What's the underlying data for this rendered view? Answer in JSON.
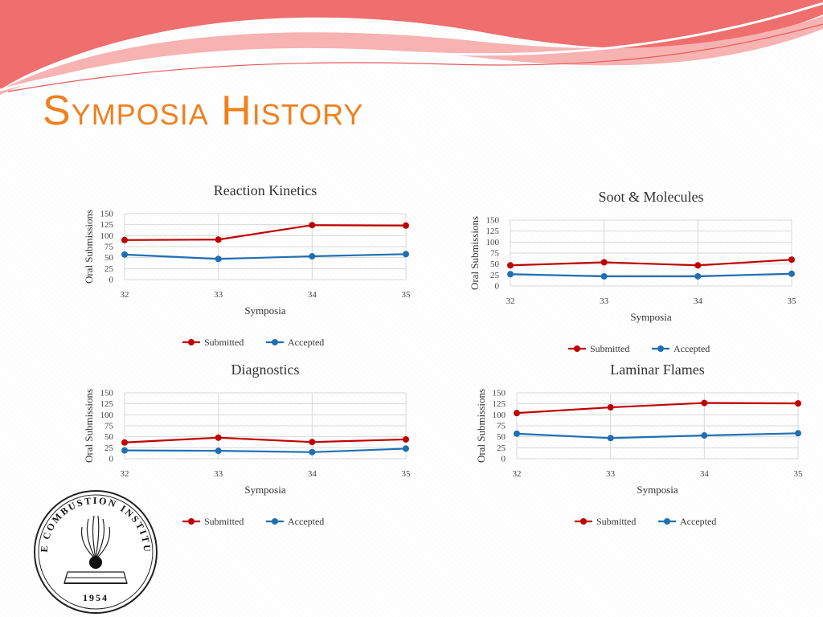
{
  "slide": {
    "title": "Symposia History"
  },
  "seal": {
    "text": "THE COMBUSTION INSTITUTE",
    "year": "1954"
  },
  "colors": {
    "title": "#f0801f",
    "submitted": "#c00000",
    "accepted": "#1f6fb4",
    "wave_top": "#ef6f6f"
  },
  "chart_data": [
    {
      "type": "line",
      "title": "Reaction Kinetics",
      "xlabel": "Symposia",
      "ylabel": "Oral Submissions",
      "categories": [
        "32",
        "33",
        "34",
        "35"
      ],
      "ylim": [
        0,
        150
      ],
      "yticks": [
        0,
        25,
        50,
        75,
        100,
        125,
        150
      ],
      "grid": true,
      "legend": "bottom",
      "series": [
        {
          "name": "Submitted",
          "values": [
            90,
            91,
            124,
            123
          ]
        },
        {
          "name": "Accepted",
          "values": [
            57,
            47,
            53,
            58
          ]
        }
      ]
    },
    {
      "type": "line",
      "title": "Soot & Molecules",
      "xlabel": "Symposia",
      "ylabel": "Oral Submissions",
      "categories": [
        "32",
        "33",
        "34",
        "35"
      ],
      "ylim": [
        0,
        150
      ],
      "yticks": [
        0,
        25,
        50,
        75,
        100,
        125,
        150
      ],
      "grid": true,
      "legend": "bottom",
      "series": [
        {
          "name": "Submitted",
          "values": [
            47,
            54,
            47,
            60
          ]
        },
        {
          "name": "Accepted",
          "values": [
            27,
            22,
            22,
            28
          ]
        }
      ]
    },
    {
      "type": "line",
      "title": "Diagnostics",
      "xlabel": "Symposia",
      "ylabel": "Oral Submissions",
      "categories": [
        "32",
        "33",
        "34",
        "35"
      ],
      "ylim": [
        0,
        150
      ],
      "yticks": [
        0,
        25,
        50,
        75,
        100,
        125,
        150
      ],
      "grid": true,
      "legend": "bottom",
      "series": [
        {
          "name": "Submitted",
          "values": [
            37,
            48,
            38,
            44
          ]
        },
        {
          "name": "Accepted",
          "values": [
            19,
            18,
            15,
            23
          ]
        }
      ]
    },
    {
      "type": "line",
      "title": "Laminar Flames",
      "xlabel": "Symposia",
      "ylabel": "Oral Submissions",
      "categories": [
        "32",
        "33",
        "34",
        "35"
      ],
      "ylim": [
        0,
        150
      ],
      "yticks": [
        0,
        25,
        50,
        75,
        100,
        125,
        150
      ],
      "grid": true,
      "legend": "bottom",
      "series": [
        {
          "name": "Submitted",
          "values": [
            104,
            117,
            127,
            126
          ]
        },
        {
          "name": "Accepted",
          "values": [
            57,
            47,
            53,
            58
          ]
        }
      ]
    }
  ]
}
